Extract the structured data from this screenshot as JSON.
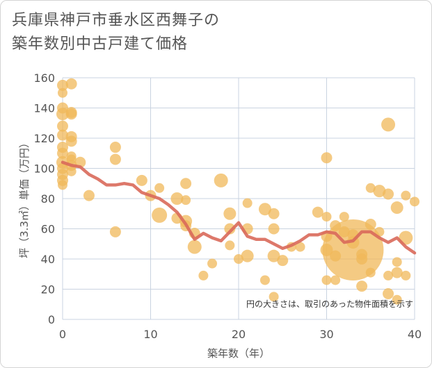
{
  "title": {
    "line1": "兵庫県神戸市垂水区西舞子の",
    "line2": "築年数別中古戸建て価格"
  },
  "colors": {
    "bubble": "#f0b85a",
    "line": "#d9695a",
    "grid": "#c9d3e0",
    "text": "#555555"
  },
  "chart_data": {
    "type": "scatter",
    "xlabel": "築年数（年）",
    "ylabel": "坪（3.3㎡）単価（万円）",
    "xlim": [
      0,
      40
    ],
    "ylim": [
      0,
      160
    ],
    "x_ticks": [
      0,
      10,
      20,
      30,
      40
    ],
    "y_ticks": [
      0,
      20,
      40,
      60,
      80,
      100,
      120,
      140,
      160
    ],
    "grid": true,
    "note": "円の大きさは、取引のあった物件面積を示す",
    "bubbles": [
      {
        "x": 0,
        "y": 155,
        "size": 8
      },
      {
        "x": 0,
        "y": 150,
        "size": 7
      },
      {
        "x": 0,
        "y": 140,
        "size": 8
      },
      {
        "x": 0,
        "y": 136,
        "size": 9
      },
      {
        "x": 0,
        "y": 128,
        "size": 8
      },
      {
        "x": 0,
        "y": 122,
        "size": 8
      },
      {
        "x": 0,
        "y": 114,
        "size": 8
      },
      {
        "x": 0,
        "y": 110,
        "size": 8
      },
      {
        "x": 0,
        "y": 104,
        "size": 9
      },
      {
        "x": 0,
        "y": 100,
        "size": 8
      },
      {
        "x": 0,
        "y": 96,
        "size": 8
      },
      {
        "x": 0,
        "y": 92,
        "size": 8
      },
      {
        "x": 0,
        "y": 89,
        "size": 7
      },
      {
        "x": 1,
        "y": 156,
        "size": 8
      },
      {
        "x": 1,
        "y": 137,
        "size": 8
      },
      {
        "x": 1,
        "y": 136,
        "size": 8
      },
      {
        "x": 1,
        "y": 121,
        "size": 8
      },
      {
        "x": 1,
        "y": 118,
        "size": 8
      },
      {
        "x": 1,
        "y": 108,
        "size": 7
      },
      {
        "x": 1,
        "y": 106,
        "size": 7
      },
      {
        "x": 1,
        "y": 102,
        "size": 8
      },
      {
        "x": 1,
        "y": 98,
        "size": 7
      },
      {
        "x": 2,
        "y": 104,
        "size": 8
      },
      {
        "x": 3,
        "y": 82,
        "size": 8
      },
      {
        "x": 6,
        "y": 114,
        "size": 8
      },
      {
        "x": 6,
        "y": 106,
        "size": 8
      },
      {
        "x": 6,
        "y": 58,
        "size": 8
      },
      {
        "x": 9,
        "y": 92,
        "size": 8
      },
      {
        "x": 10,
        "y": 82,
        "size": 8
      },
      {
        "x": 11,
        "y": 87,
        "size": 7
      },
      {
        "x": 11,
        "y": 69,
        "size": 11
      },
      {
        "x": 13,
        "y": 80,
        "size": 9
      },
      {
        "x": 13,
        "y": 67,
        "size": 8
      },
      {
        "x": 14,
        "y": 90,
        "size": 8
      },
      {
        "x": 14,
        "y": 79,
        "size": 7
      },
      {
        "x": 14,
        "y": 65,
        "size": 9
      },
      {
        "x": 14,
        "y": 62,
        "size": 8
      },
      {
        "x": 15,
        "y": 57,
        "size": 8
      },
      {
        "x": 15,
        "y": 48,
        "size": 10
      },
      {
        "x": 16,
        "y": 29,
        "size": 7
      },
      {
        "x": 17,
        "y": 37,
        "size": 7
      },
      {
        "x": 18,
        "y": 92,
        "size": 10
      },
      {
        "x": 19,
        "y": 70,
        "size": 9
      },
      {
        "x": 19,
        "y": 60,
        "size": 8
      },
      {
        "x": 19,
        "y": 49,
        "size": 7
      },
      {
        "x": 20,
        "y": 40,
        "size": 7
      },
      {
        "x": 21,
        "y": 77,
        "size": 7
      },
      {
        "x": 21,
        "y": 60,
        "size": 8
      },
      {
        "x": 21,
        "y": 42,
        "size": 9
      },
      {
        "x": 23,
        "y": 73,
        "size": 9
      },
      {
        "x": 23,
        "y": 26,
        "size": 7
      },
      {
        "x": 24,
        "y": 70,
        "size": 8
      },
      {
        "x": 24,
        "y": 60,
        "size": 8
      },
      {
        "x": 24,
        "y": 42,
        "size": 9
      },
      {
        "x": 24,
        "y": 15,
        "size": 7
      },
      {
        "x": 25,
        "y": 39,
        "size": 8
      },
      {
        "x": 26,
        "y": 48,
        "size": 7
      },
      {
        "x": 27,
        "y": 48,
        "size": 7
      },
      {
        "x": 29,
        "y": 71,
        "size": 8
      },
      {
        "x": 30,
        "y": 107,
        "size": 8
      },
      {
        "x": 30,
        "y": 68,
        "size": 7
      },
      {
        "x": 30,
        "y": 55,
        "size": 8
      },
      {
        "x": 30,
        "y": 46,
        "size": 9
      },
      {
        "x": 30,
        "y": 26,
        "size": 7
      },
      {
        "x": 31,
        "y": 62,
        "size": 8
      },
      {
        "x": 31,
        "y": 42,
        "size": 8
      },
      {
        "x": 31,
        "y": 26,
        "size": 7
      },
      {
        "x": 32,
        "y": 68,
        "size": 7
      },
      {
        "x": 32,
        "y": 58,
        "size": 8
      },
      {
        "x": 33,
        "y": 46,
        "size": 44
      },
      {
        "x": 33,
        "y": 51,
        "size": 9
      },
      {
        "x": 33,
        "y": 56,
        "size": 8
      },
      {
        "x": 34,
        "y": 43,
        "size": 8
      },
      {
        "x": 34,
        "y": 40,
        "size": 8
      },
      {
        "x": 34,
        "y": 22,
        "size": 8
      },
      {
        "x": 35,
        "y": 87,
        "size": 7
      },
      {
        "x": 35,
        "y": 63,
        "size": 8
      },
      {
        "x": 35,
        "y": 31,
        "size": 7
      },
      {
        "x": 36,
        "y": 85,
        "size": 9
      },
      {
        "x": 36,
        "y": 58,
        "size": 7
      },
      {
        "x": 37,
        "y": 129,
        "size": 10
      },
      {
        "x": 37,
        "y": 83,
        "size": 8
      },
      {
        "x": 37,
        "y": 29,
        "size": 7
      },
      {
        "x": 37,
        "y": 17,
        "size": 8
      },
      {
        "x": 38,
        "y": 74,
        "size": 9
      },
      {
        "x": 38,
        "y": 38,
        "size": 7
      },
      {
        "x": 38,
        "y": 31,
        "size": 8
      },
      {
        "x": 38,
        "y": 13,
        "size": 7
      },
      {
        "x": 39,
        "y": 82,
        "size": 7
      },
      {
        "x": 39,
        "y": 54,
        "size": 10
      },
      {
        "x": 39,
        "y": 29,
        "size": 7
      },
      {
        "x": 40,
        "y": 78,
        "size": 7
      }
    ],
    "trend": {
      "x": [
        0,
        1,
        2,
        3,
        4,
        5,
        6,
        7,
        8,
        9,
        10,
        11,
        12,
        13,
        14,
        15,
        16,
        17,
        18,
        19,
        20,
        21,
        22,
        23,
        24,
        25,
        26,
        27,
        28,
        29,
        30,
        31,
        32,
        33,
        34,
        35,
        36,
        37,
        38,
        39,
        40
      ],
      "y": [
        104,
        102,
        101,
        96,
        93,
        89,
        89,
        90,
        89,
        84,
        82,
        80,
        76,
        71,
        63,
        53,
        57,
        54,
        52,
        58,
        64,
        55,
        53,
        53,
        50,
        47,
        49,
        52,
        56,
        56,
        58,
        57,
        51,
        52,
        58,
        58,
        54,
        51,
        54,
        48,
        44
      ]
    }
  }
}
